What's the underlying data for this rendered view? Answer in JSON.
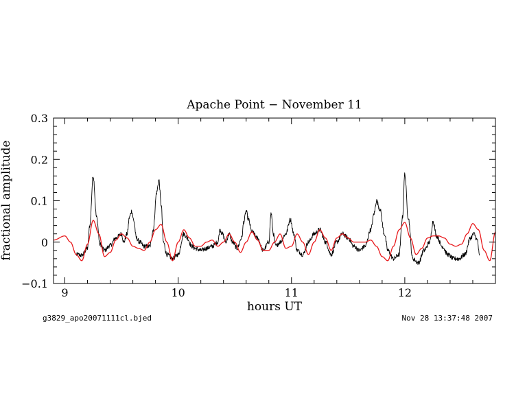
{
  "chart_data": {
    "type": "line",
    "title": "Apache Point − November 11",
    "xlabel": "hours UT",
    "ylabel": "fractional amplitude",
    "xlim": [
      8.9,
      12.8
    ],
    "ylim": [
      -0.1,
      0.3
    ],
    "x_ticks": [
      9,
      10,
      11,
      12
    ],
    "x_tick_labels": [
      "9",
      "10",
      "11",
      "12"
    ],
    "y_ticks": [
      -0.1,
      0,
      0.1,
      0.2,
      0.3
    ],
    "y_tick_labels": [
      "−0.1",
      "0",
      "0.1",
      "0.2",
      "0.3"
    ],
    "grid": false,
    "legend": "none",
    "series": [
      {
        "color": "#000000",
        "style": "noisy",
        "x": [
          9.1,
          9.15,
          9.2,
          9.22,
          9.25,
          9.28,
          9.31,
          9.35,
          9.4,
          9.45,
          9.5,
          9.52,
          9.55,
          9.57,
          9.59,
          9.61,
          9.63,
          9.66,
          9.7,
          9.75,
          9.78,
          9.81,
          9.83,
          9.85,
          9.87,
          9.9,
          9.95,
          10.0,
          10.05,
          10.08,
          10.12,
          10.15,
          10.2,
          10.25,
          10.3,
          10.35,
          10.37,
          10.39,
          10.42,
          10.45,
          10.48,
          10.52,
          10.56,
          10.58,
          10.6,
          10.62,
          10.65,
          10.7,
          10.75,
          10.8,
          10.82,
          10.84,
          10.86,
          10.9,
          10.95,
          10.99,
          11.02,
          11.05,
          11.1,
          11.15,
          11.2,
          11.25,
          11.3,
          11.35,
          11.4,
          11.45,
          11.5,
          11.55,
          11.6,
          11.65,
          11.7,
          11.73,
          11.75,
          11.78,
          11.82,
          11.85,
          11.9,
          11.95,
          11.98,
          12.0,
          12.03,
          12.07,
          12.12,
          12.17,
          12.22,
          12.25,
          12.28,
          12.33,
          12.38,
          12.43,
          12.48,
          12.53,
          12.58,
          12.61,
          12.64,
          12.66
        ],
        "y": [
          -0.03,
          -0.032,
          -0.015,
          0.04,
          0.16,
          0.06,
          -0.005,
          -0.02,
          -0.008,
          0.01,
          0.02,
          0.0,
          0.02,
          0.06,
          0.075,
          0.05,
          0.01,
          0.0,
          -0.01,
          -0.01,
          0.03,
          0.12,
          0.15,
          0.09,
          0.0,
          -0.03,
          -0.04,
          -0.03,
          0.02,
          0.01,
          -0.01,
          -0.015,
          -0.02,
          -0.015,
          -0.01,
          0.0,
          0.03,
          0.02,
          0.0,
          0.02,
          0.0,
          -0.015,
          0.01,
          0.05,
          0.075,
          0.055,
          0.025,
          0.01,
          -0.02,
          0.0,
          0.07,
          0.02,
          -0.01,
          0.0,
          0.02,
          0.055,
          0.02,
          -0.02,
          -0.03,
          0.0,
          0.02,
          0.03,
          0.0,
          -0.03,
          0.0,
          0.02,
          0.01,
          -0.01,
          -0.02,
          -0.01,
          0.03,
          0.07,
          0.1,
          0.08,
          0.02,
          -0.02,
          -0.04,
          -0.03,
          0.06,
          0.165,
          0.06,
          -0.04,
          -0.05,
          -0.02,
          0.0,
          0.05,
          0.015,
          -0.01,
          -0.03,
          -0.04,
          -0.04,
          -0.03,
          0.01,
          0.02,
          0.005,
          -0.035
        ]
      },
      {
        "color": "#e8191c",
        "style": "smooth",
        "x": [
          8.9,
          9.0,
          9.05,
          9.1,
          9.15,
          9.2,
          9.25,
          9.3,
          9.35,
          9.4,
          9.45,
          9.5,
          9.55,
          9.6,
          9.65,
          9.7,
          9.75,
          9.8,
          9.85,
          9.9,
          9.95,
          10.0,
          10.05,
          10.1,
          10.15,
          10.2,
          10.25,
          10.3,
          10.35,
          10.4,
          10.45,
          10.5,
          10.55,
          10.6,
          10.65,
          10.7,
          10.75,
          10.8,
          10.85,
          10.9,
          10.95,
          11.0,
          11.05,
          11.1,
          11.15,
          11.2,
          11.25,
          11.3,
          11.35,
          11.4,
          11.45,
          11.5,
          11.55,
          11.6,
          11.65,
          11.7,
          11.75,
          11.8,
          11.85,
          11.9,
          11.95,
          12.0,
          12.05,
          12.1,
          12.15,
          12.2,
          12.25,
          12.3,
          12.35,
          12.4,
          12.45,
          12.5,
          12.55,
          12.6,
          12.65,
          12.7,
          12.75,
          12.8
        ],
        "y": [
          0.005,
          0.015,
          0.0,
          -0.03,
          -0.045,
          -0.005,
          0.053,
          0.02,
          -0.035,
          -0.025,
          0.005,
          0.02,
          0.01,
          -0.01,
          -0.015,
          -0.02,
          0.0,
          0.03,
          0.043,
          0.0,
          -0.045,
          0.0,
          0.03,
          0.01,
          -0.01,
          -0.01,
          0.0,
          0.005,
          -0.01,
          0.0,
          0.02,
          0.0,
          -0.025,
          0.0,
          0.025,
          0.005,
          -0.02,
          -0.02,
          0.0,
          0.02,
          -0.015,
          -0.01,
          0.02,
          0.0,
          -0.03,
          0.0,
          0.03,
          0.01,
          -0.02,
          0.01,
          0.02,
          0.01,
          0.0,
          0.0,
          0.0,
          0.005,
          -0.01,
          -0.035,
          -0.045,
          -0.01,
          0.03,
          0.048,
          0.01,
          -0.03,
          -0.015,
          0.01,
          0.015,
          0.015,
          0.01,
          -0.005,
          -0.01,
          -0.005,
          0.02,
          0.045,
          0.03,
          -0.02,
          -0.045,
          0.025
        ]
      }
    ]
  },
  "footer": {
    "left": "g3829_apo20071111cl.bjed",
    "right": "Nov 28 13:37:48 2007"
  }
}
